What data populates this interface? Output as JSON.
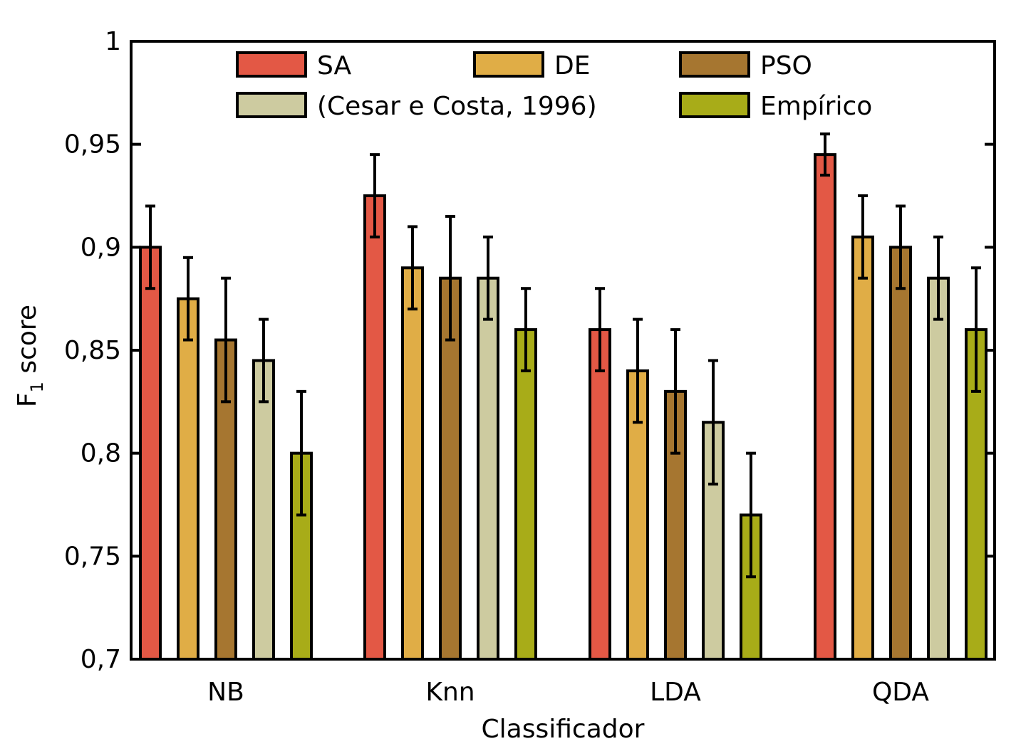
{
  "chart_data": {
    "type": "bar",
    "xlabel": "Classificador",
    "ylabel": "F",
    "ylabel_sub": "1",
    "ylabel_rest": " score",
    "ylim": [
      0.7,
      1.0
    ],
    "yticks": [
      0.7,
      0.75,
      0.8,
      0.85,
      0.9,
      0.95,
      1.0
    ],
    "ytick_labels": [
      "0,7",
      "0,75",
      "0,8",
      "0,85",
      "0,9",
      "0,95",
      "1"
    ],
    "categories": [
      "NB",
      "Knn",
      "LDA",
      "QDA"
    ],
    "legend_position": "top",
    "series": [
      {
        "name": "SA",
        "color": "#e35845",
        "values": [
          0.9,
          0.925,
          0.86,
          0.945
        ],
        "errors": [
          0.02,
          0.02,
          0.02,
          0.01
        ]
      },
      {
        "name": "DE",
        "color": "#e0ad46",
        "values": [
          0.875,
          0.89,
          0.84,
          0.905
        ],
        "errors": [
          0.02,
          0.02,
          0.025,
          0.02
        ]
      },
      {
        "name": "PSO",
        "color": "#a67630",
        "values": [
          0.855,
          0.885,
          0.83,
          0.9
        ],
        "errors": [
          0.03,
          0.03,
          0.03,
          0.02
        ]
      },
      {
        "name": "(Cesar e Costa, 1996)",
        "color": "#cdcba0",
        "values": [
          0.845,
          0.885,
          0.815,
          0.885
        ],
        "errors": [
          0.02,
          0.02,
          0.03,
          0.02
        ]
      },
      {
        "name": "Empírico",
        "color": "#a8ac18",
        "values": [
          0.8,
          0.86,
          0.77,
          0.86
        ],
        "errors": [
          0.03,
          0.02,
          0.03,
          0.03
        ]
      }
    ]
  }
}
